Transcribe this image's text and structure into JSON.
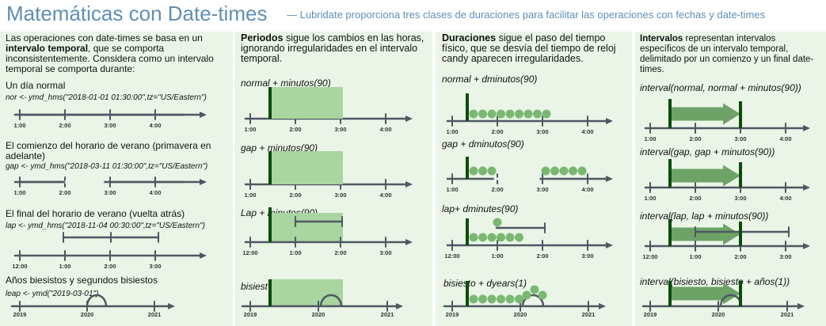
{
  "header": {
    "title": "Matemáticas con Date-times",
    "subtitle": "— Lubridate proporciona tres clases de duraciones para facilitar las operaciones con fechas y date-times"
  },
  "col1": {
    "intro_a": "Las operaciones con date-times se basa en un",
    "intro_b": "intervalo temporal",
    "intro_c": ", que se comporta inconsistentemente. Considera como un intervalo temporal se comporta durante:",
    "rows": [
      {
        "title": "Un día normal",
        "code": "nor <- ymd_hms(\"2018-01-01 01:30:00\",tz=\"US/Eastern\")"
      },
      {
        "title": "El comienzo del horario de verano (primavera en adelante)",
        "code": "gap <- ymd_hms(\"2018-03-11 01:30:00\",tz=\"US/Eastern\")"
      },
      {
        "title": "El final del horario de verano (vuelta atrás)",
        "code": "lap <- ymd_hms(\"2018-11-04 00:30:00\",tz=\"US/Eastern\")"
      },
      {
        "title": "Años biesistos y segundos bisiestos",
        "code": "leap <- ymd(\"2019-03-01\")"
      }
    ]
  },
  "col2": {
    "head_b": "Periodos",
    "head_rest": " sigue los cambios en las horas, ignorando irregularidades en el intervalo temporal.",
    "codes": [
      "normal + minutos(90)",
      "gap + minutos(90)",
      "Lap + minutos(90)",
      "bisiest"
    ]
  },
  "col3": {
    "head_b": "Duraciones",
    "head_rest": " sigue el paso del tiempo físico, que se desvía del tiempo de reloj candy aparecen irregularidades.",
    "codes": [
      "normal + dminutos(90)",
      "gap + dminutos(90)",
      "lap+ dminutes(90)",
      "bisiesto + dyears(1)"
    ]
  },
  "col4": {
    "head_b": "Intervalos",
    "head_rest": " representan intervalos específicos de un intervalo temporal, delimitado por un comienzo y un final date-times.",
    "codes": [
      "interval(normal, normal + minutos(90))",
      "interval(gap, gap + minutos(90))",
      "interval(lap, lap + minutos(90))",
      "interval(bisiesto, bisiesto + años(1))"
    ]
  },
  "axes": {
    "normal": [
      "1:00",
      "2:00",
      "3:00",
      "4:00"
    ],
    "gap": [
      "1:00",
      "2:00",
      "3:00",
      "4:00"
    ],
    "lap": [
      "12:00",
      "1:00",
      "2:00",
      "3:00"
    ],
    "leap": [
      "2019",
      "2020",
      "2021"
    ]
  },
  "colors": {
    "title": "#5f8fb4",
    "panel": "#eaf5e7",
    "axis": "#4f5763",
    "start_bar": "#0a4d0a",
    "period_box": "#a8d5a0",
    "dot": "#7ab872",
    "arrow": "#6ea368"
  }
}
